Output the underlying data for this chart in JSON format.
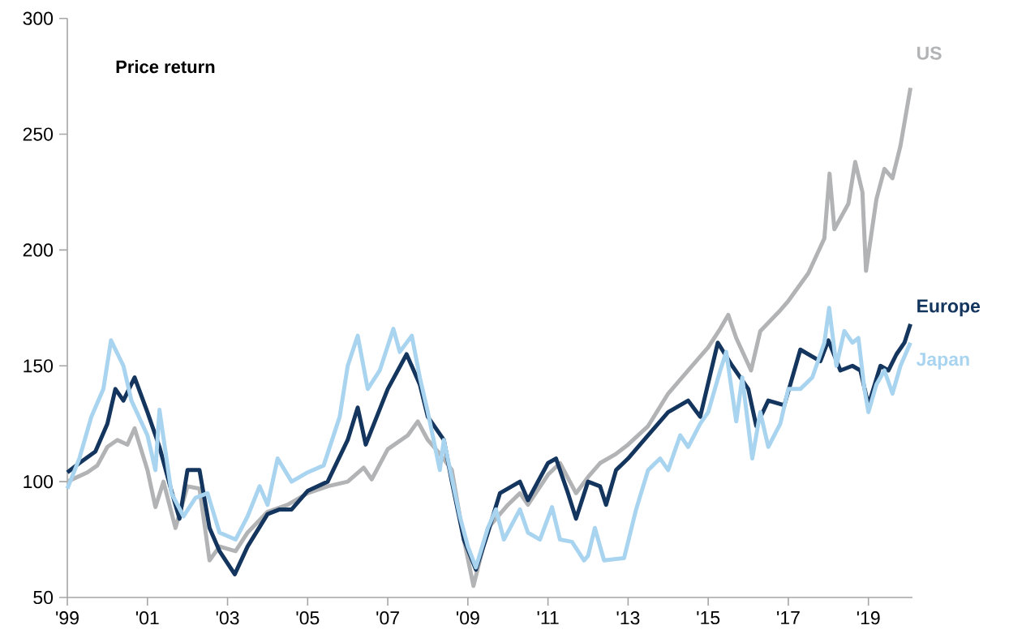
{
  "chart_data": {
    "type": "line",
    "title": "Price return",
    "xlim": [
      1999,
      2020.1
    ],
    "ylim": [
      50,
      300
    ],
    "xticks": [
      {
        "value": 1999,
        "label": "'99"
      },
      {
        "value": 2001,
        "label": "'01"
      },
      {
        "value": 2003,
        "label": "'03"
      },
      {
        "value": 2005,
        "label": "'05"
      },
      {
        "value": 2007,
        "label": "'07"
      },
      {
        "value": 2009,
        "label": "'09"
      },
      {
        "value": 2011,
        "label": "'11"
      },
      {
        "value": 2013,
        "label": "'13"
      },
      {
        "value": 2015,
        "label": "'15"
      },
      {
        "value": 2017,
        "label": "'17"
      },
      {
        "value": 2019,
        "label": "'19"
      }
    ],
    "yticks": [
      50,
      100,
      150,
      200,
      250,
      300
    ],
    "series": [
      {
        "name": "US",
        "color": "#b2b3b5",
        "x": [
          1999.0,
          1999.5,
          1999.75,
          2000.0,
          2000.25,
          2000.5,
          2000.68,
          2001.0,
          2001.2,
          2001.4,
          2001.7,
          2002.0,
          2002.3,
          2002.55,
          2002.8,
          2003.2,
          2003.5,
          2004.0,
          2004.5,
          2005.0,
          2005.5,
          2006.0,
          2006.4,
          2006.6,
          2007.0,
          2007.5,
          2007.75,
          2008.0,
          2008.3,
          2008.6,
          2008.9,
          2009.14,
          2009.5,
          2010.0,
          2010.3,
          2010.5,
          2011.0,
          2011.3,
          2011.7,
          2012.0,
          2012.3,
          2012.7,
          2013.0,
          2013.5,
          2014.0,
          2014.5,
          2015.0,
          2015.3,
          2015.5,
          2015.7,
          2016.07,
          2016.3,
          2016.8,
          2017.0,
          2017.5,
          2017.9,
          2018.03,
          2018.15,
          2018.5,
          2018.67,
          2018.85,
          2018.94,
          2019.2,
          2019.4,
          2019.6,
          2019.8,
          2020.05
        ],
        "values": [
          100,
          104,
          107,
          115,
          118,
          116,
          123,
          105,
          89,
          100,
          80,
          98,
          97,
          66,
          72,
          70,
          78,
          87,
          90,
          95,
          98,
          100,
          106,
          101,
          114,
          120,
          126,
          118,
          112,
          105,
          75,
          55,
          80,
          90,
          95,
          90,
          103,
          108,
          95,
          102,
          108,
          112,
          116,
          124,
          138,
          148,
          158,
          166,
          172,
          162,
          148,
          165,
          174,
          178,
          190,
          205,
          233,
          209,
          220,
          238,
          225,
          191,
          222,
          235,
          231,
          245,
          270
        ]
      },
      {
        "name": "Europe",
        "color": "#14365e",
        "x": [
          1999.0,
          1999.3,
          1999.7,
          2000.0,
          2000.2,
          2000.4,
          2000.68,
          2001.0,
          2001.3,
          2001.6,
          2001.8,
          2002.0,
          2002.3,
          2002.55,
          2002.8,
          2003.18,
          2003.5,
          2004.0,
          2004.3,
          2004.6,
          2005.0,
          2005.5,
          2006.0,
          2006.25,
          2006.45,
          2007.0,
          2007.47,
          2007.8,
          2008.0,
          2008.4,
          2008.6,
          2008.9,
          2009.2,
          2009.5,
          2009.8,
          2010.3,
          2010.5,
          2011.0,
          2011.2,
          2011.5,
          2011.7,
          2012.0,
          2012.3,
          2012.45,
          2012.7,
          2013.0,
          2013.5,
          2014.0,
          2014.5,
          2014.8,
          2015.24,
          2015.6,
          2016.0,
          2016.2,
          2016.5,
          2016.9,
          2017.3,
          2017.8,
          2018.0,
          2018.3,
          2018.6,
          2018.8,
          2019.0,
          2019.3,
          2019.5,
          2019.7,
          2019.9,
          2020.05
        ],
        "values": [
          104,
          108,
          113,
          125,
          140,
          135,
          145,
          130,
          115,
          96,
          84,
          105,
          105,
          80,
          70,
          60,
          72,
          86,
          88,
          88,
          96,
          100,
          118,
          132,
          116,
          140,
          155,
          142,
          128,
          118,
          100,
          75,
          62,
          78,
          95,
          100,
          92,
          108,
          110,
          95,
          84,
          100,
          98,
          90,
          105,
          110,
          120,
          130,
          135,
          128,
          160,
          150,
          140,
          124,
          135,
          133,
          157,
          152,
          161,
          148,
          150,
          148,
          133,
          150,
          148,
          155,
          160,
          168
        ]
      },
      {
        "name": "Japan",
        "color": "#a9d4f0",
        "x": [
          1999.0,
          1999.3,
          1999.6,
          1999.9,
          2000.09,
          2000.4,
          2000.6,
          2001.0,
          2001.2,
          2001.3,
          2001.6,
          2001.9,
          2002.2,
          2002.5,
          2002.8,
          2003.2,
          2003.5,
          2003.8,
          2004.0,
          2004.25,
          2004.6,
          2005.0,
          2005.4,
          2005.8,
          2006.0,
          2006.25,
          2006.5,
          2006.8,
          2007.14,
          2007.3,
          2007.6,
          2007.8,
          2008.0,
          2008.3,
          2008.4,
          2008.8,
          2009.0,
          2009.2,
          2009.5,
          2009.7,
          2009.9,
          2010.3,
          2010.5,
          2010.8,
          2011.1,
          2011.3,
          2011.6,
          2011.9,
          2012.0,
          2012.17,
          2012.4,
          2012.9,
          2013.2,
          2013.5,
          2013.8,
          2014.0,
          2014.3,
          2014.5,
          2014.8,
          2015.0,
          2015.3,
          2015.45,
          2015.7,
          2015.85,
          2016.1,
          2016.3,
          2016.5,
          2016.8,
          2017.0,
          2017.3,
          2017.6,
          2017.9,
          2018.02,
          2018.2,
          2018.4,
          2018.6,
          2018.75,
          2018.9,
          2019.0,
          2019.2,
          2019.4,
          2019.6,
          2019.8,
          2020.05
        ],
        "values": [
          97,
          110,
          128,
          140,
          161,
          150,
          135,
          120,
          105,
          131,
          95,
          85,
          93,
          95,
          78,
          75,
          85,
          98,
          90,
          110,
          100,
          104,
          107,
          128,
          150,
          163,
          140,
          148,
          166,
          156,
          163,
          145,
          130,
          105,
          118,
          85,
          72,
          63,
          80,
          88,
          75,
          88,
          78,
          75,
          89,
          75,
          74,
          66,
          68,
          80,
          66,
          67,
          88,
          105,
          110,
          105,
          120,
          115,
          125,
          130,
          148,
          156,
          126,
          145,
          110,
          130,
          115,
          125,
          140,
          140,
          145,
          160,
          175,
          150,
          165,
          160,
          162,
          140,
          130,
          142,
          148,
          138,
          150,
          160
        ]
      }
    ]
  }
}
